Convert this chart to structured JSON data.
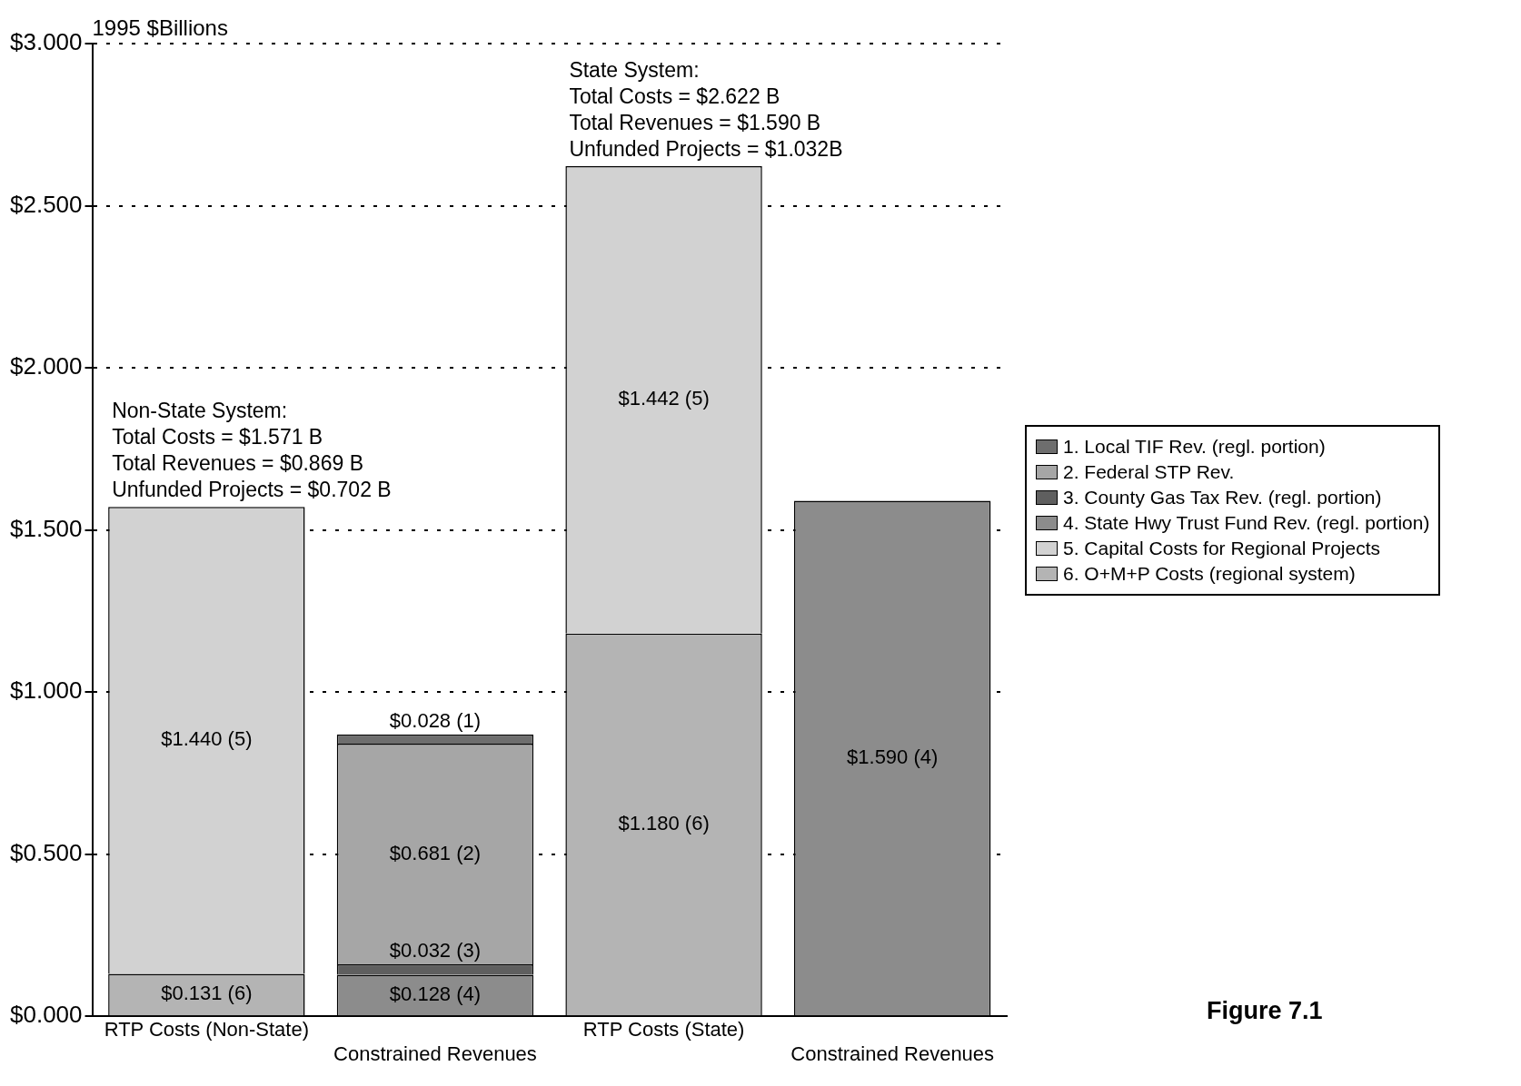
{
  "chart_data": {
    "type": "bar",
    "stacked": true,
    "ylabel": "1995 $Billions",
    "categories": [
      "RTP Costs (Non-State)",
      "Constrained Revenues",
      "RTP Costs (State)",
      "Constrained Revenues"
    ],
    "series": [
      {
        "name": "6. O+M+P Costs (regional system)",
        "color": "#b4b4b4",
        "values": [
          0.131,
          null,
          1.18,
          null
        ],
        "value_labels": [
          "$0.131 (6)",
          null,
          "$1.180 (6)",
          null
        ]
      },
      {
        "name": "5. Capital Costs for Regional Projects",
        "color": "#d2d2d2",
        "values": [
          1.44,
          null,
          1.442,
          null
        ],
        "value_labels": [
          "$1.440 (5)",
          null,
          "$1.442 (5)",
          null
        ]
      },
      {
        "name": "4. State Hwy Trust Fund Rev. (regl. portion)",
        "color": "#8c8c8c",
        "values": [
          null,
          0.128,
          null,
          1.59
        ],
        "value_labels": [
          null,
          "$0.128 (4)",
          null,
          "$1.590 (4)"
        ]
      },
      {
        "name": "3. County Gas Tax Rev. (regl. portion)",
        "color": "#5f5f5f",
        "values": [
          null,
          0.032,
          null,
          null
        ],
        "value_labels": [
          null,
          "$0.032 (3)",
          null,
          null
        ]
      },
      {
        "name": "2. Federal STP Rev.",
        "color": "#a6a6a6",
        "values": [
          null,
          0.681,
          null,
          null
        ],
        "value_labels": [
          null,
          "$0.681 (2)",
          null,
          null
        ]
      },
      {
        "name": "1. Local TIF Rev. (regl. portion)",
        "color": "#6e6e6e",
        "values": [
          null,
          0.028,
          null,
          null
        ],
        "value_labels": [
          null,
          "$0.028 (1)",
          null,
          null
        ]
      }
    ],
    "ylim": [
      0,
      3
    ],
    "yticks": [
      {
        "value": 0,
        "label": "$0.000"
      },
      {
        "value": 0.5,
        "label": "$0.500"
      },
      {
        "value": 1,
        "label": "$1.000"
      },
      {
        "value": 1.5,
        "label": "$1.500"
      },
      {
        "value": 2,
        "label": "$2.000"
      },
      {
        "value": 2.5,
        "label": "$2.500"
      },
      {
        "value": 3,
        "label": "$3.000"
      }
    ],
    "grid": "y",
    "legend": "right",
    "annotations": [
      {
        "text": "Non-State System:\nTotal Costs = $1.571 B\nTotal Revenues = $0.869 B\nUnfunded Projects = $0.702 B",
        "x": "RTP Costs (Non-State)",
        "y": 1.571
      },
      {
        "text": "State System:\nTotal Costs = $2.622 B\nTotal Revenues = $1.590 B\nUnfunded Projects = $1.032B",
        "x": "RTP Costs (State)",
        "y": 2.622
      },
      "Figure 7.1"
    ]
  }
}
